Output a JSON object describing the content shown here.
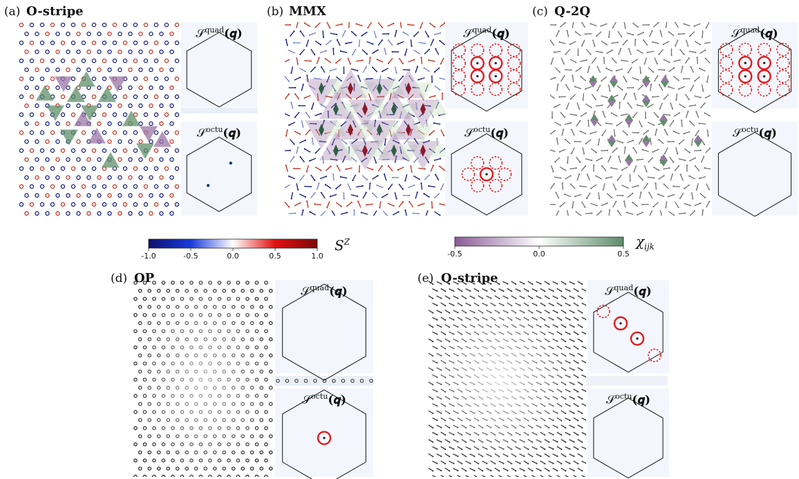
{
  "panels": [
    {
      "id": "a",
      "letter": "(a)",
      "title": "O-stripe",
      "lattice": "circles-rb",
      "quad_peaks": [],
      "octu_peaks": [
        {
          "u": 0.68,
          "v": 0.35,
          "marker": "dot"
        },
        {
          "u": 0.33,
          "v": 0.65,
          "marker": "dot"
        }
      ]
    },
    {
      "id": "b",
      "letter": "(b)",
      "title": "MMX",
      "lattice": "arrows-rb",
      "quad_peaks": [
        {
          "u": 0.11,
          "v": 0.25,
          "marker": "dashed"
        },
        {
          "u": 0.37,
          "v": 0.25,
          "marker": "dashed"
        },
        {
          "u": 0.63,
          "v": 0.25,
          "marker": "dashed"
        },
        {
          "u": 0.89,
          "v": 0.25,
          "marker": "dashed"
        },
        {
          "u": 0.11,
          "v": 0.41,
          "marker": "dashed"
        },
        {
          "u": 0.37,
          "v": 0.41,
          "marker": "solid"
        },
        {
          "u": 0.63,
          "v": 0.41,
          "marker": "solid"
        },
        {
          "u": 0.89,
          "v": 0.41,
          "marker": "dashed"
        },
        {
          "u": 0.11,
          "v": 0.57,
          "marker": "dashed"
        },
        {
          "u": 0.37,
          "v": 0.57,
          "marker": "solid"
        },
        {
          "u": 0.63,
          "v": 0.57,
          "marker": "solid"
        },
        {
          "u": 0.89,
          "v": 0.57,
          "marker": "dashed"
        },
        {
          "u": 0.11,
          "v": 0.73,
          "marker": "dashed"
        },
        {
          "u": 0.37,
          "v": 0.73,
          "marker": "dashed"
        },
        {
          "u": 0.63,
          "v": 0.73,
          "marker": "dashed"
        },
        {
          "u": 0.89,
          "v": 0.73,
          "marker": "dashed"
        }
      ],
      "octu_peaks": [
        {
          "u": 0.37,
          "v": 0.36,
          "marker": "dashed"
        },
        {
          "u": 0.63,
          "v": 0.36,
          "marker": "dashed"
        },
        {
          "u": 0.24,
          "v": 0.5,
          "marker": "dashed"
        },
        {
          "u": 0.5,
          "v": 0.5,
          "marker": "solid"
        },
        {
          "u": 0.76,
          "v": 0.5,
          "marker": "dashed"
        },
        {
          "u": 0.37,
          "v": 0.64,
          "marker": "dashed"
        },
        {
          "u": 0.63,
          "v": 0.64,
          "marker": "dashed"
        }
      ]
    },
    {
      "id": "c",
      "letter": "(c)",
      "title": "Q-2Q",
      "lattice": "arrows-gray",
      "quad_peaks": [
        {
          "u": 0.11,
          "v": 0.25,
          "marker": "dashed"
        },
        {
          "u": 0.37,
          "v": 0.25,
          "marker": "dashed"
        },
        {
          "u": 0.63,
          "v": 0.25,
          "marker": "dashed"
        },
        {
          "u": 0.89,
          "v": 0.25,
          "marker": "dashed"
        },
        {
          "u": 0.11,
          "v": 0.41,
          "marker": "dashed"
        },
        {
          "u": 0.37,
          "v": 0.41,
          "marker": "solid"
        },
        {
          "u": 0.63,
          "v": 0.41,
          "marker": "solid"
        },
        {
          "u": 0.89,
          "v": 0.41,
          "marker": "dashed"
        },
        {
          "u": 0.11,
          "v": 0.57,
          "marker": "dashed"
        },
        {
          "u": 0.37,
          "v": 0.57,
          "marker": "solid"
        },
        {
          "u": 0.63,
          "v": 0.57,
          "marker": "solid"
        },
        {
          "u": 0.89,
          "v": 0.57,
          "marker": "dashed"
        },
        {
          "u": 0.11,
          "v": 0.73,
          "marker": "dashed"
        },
        {
          "u": 0.37,
          "v": 0.73,
          "marker": "dashed"
        },
        {
          "u": 0.63,
          "v": 0.73,
          "marker": "dashed"
        },
        {
          "u": 0.89,
          "v": 0.73,
          "marker": "dashed"
        }
      ],
      "octu_peaks": []
    },
    {
      "id": "d",
      "letter": "(d)",
      "title": "OP",
      "lattice": "circles-gray",
      "quad_peaks": [],
      "octu_peaks": [
        {
          "u": 0.5,
          "v": 0.5,
          "marker": "solid"
        }
      ]
    },
    {
      "id": "e",
      "letter": "(e)",
      "title": "Q-stripe",
      "lattice": "arrows-diag",
      "quad_peaks": [
        {
          "u": 0.14,
          "v": 0.24,
          "marker": "dashed"
        },
        {
          "u": 0.39,
          "v": 0.39,
          "marker": "solid"
        },
        {
          "u": 0.63,
          "v": 0.58,
          "marker": "solid"
        },
        {
          "u": 0.88,
          "v": 0.79,
          "marker": "dashed"
        }
      ],
      "octu_peaks": []
    }
  ],
  "sf_labels": {
    "quad_sup": "quad",
    "octu_sup": "octu",
    "s_symbol": "𝒮",
    "q_arg": "(𝒒)"
  },
  "colorbars": [
    {
      "id": "sz",
      "label": "S",
      "label_sup": "Z",
      "ticks": [
        "-1.0",
        "-0.5",
        "0.0",
        "0.5",
        "1.0"
      ],
      "stops": [
        "#0d1170",
        "#1a3ad8",
        "#ffffff",
        "#e01010",
        "#7a0a0a"
      ]
    },
    {
      "id": "chi",
      "label": "χ",
      "label_sub": "ijk",
      "ticks": [
        "-0.5",
        "0.0",
        "0.5"
      ],
      "stops": [
        "#8a5b96",
        "#ffffff",
        "#5d8c6a"
      ]
    }
  ],
  "colors": {
    "peak": "#e41a1c",
    "bz_bg": "#f3f7fd",
    "green": "#5f8f6a",
    "purple": "#9a76a6"
  }
}
